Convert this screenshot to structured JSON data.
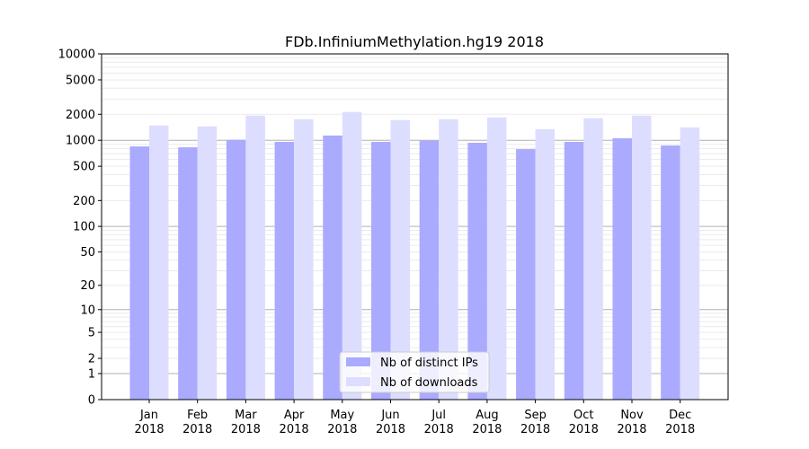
{
  "chart_data": {
    "type": "bar",
    "title": "FDb.InfiniumMethylation.hg19 2018",
    "xlabel": "",
    "ylabel": "",
    "yscale": "log10(1+y)",
    "ylim": [
      0,
      10000
    ],
    "yticks": [
      0,
      1,
      2,
      5,
      10,
      20,
      50,
      100,
      200,
      500,
      1000,
      2000,
      5000,
      10000
    ],
    "grid": true,
    "legend_position": "bottom-center",
    "categories": [
      "Jan\n2018",
      "Feb\n2018",
      "Mar\n2018",
      "Apr\n2018",
      "May\n2018",
      "Jun\n2018",
      "Jul\n2018",
      "Aug\n2018",
      "Sep\n2018",
      "Oct\n2018",
      "Nov\n2018",
      "Dec\n2018"
    ],
    "series": [
      {
        "name": "Nb of distinct IPs",
        "color": "#aaaaff",
        "values": [
          849,
          829,
          1013,
          958,
          1135,
          958,
          989,
          935,
          790,
          958,
          1056,
          870
        ]
      },
      {
        "name": "Nb of downloads",
        "color": "#ddddff",
        "values": [
          1481,
          1446,
          1932,
          1754,
          2129,
          1712,
          1754,
          1841,
          1345,
          1797,
          1932,
          1411
        ]
      }
    ]
  }
}
